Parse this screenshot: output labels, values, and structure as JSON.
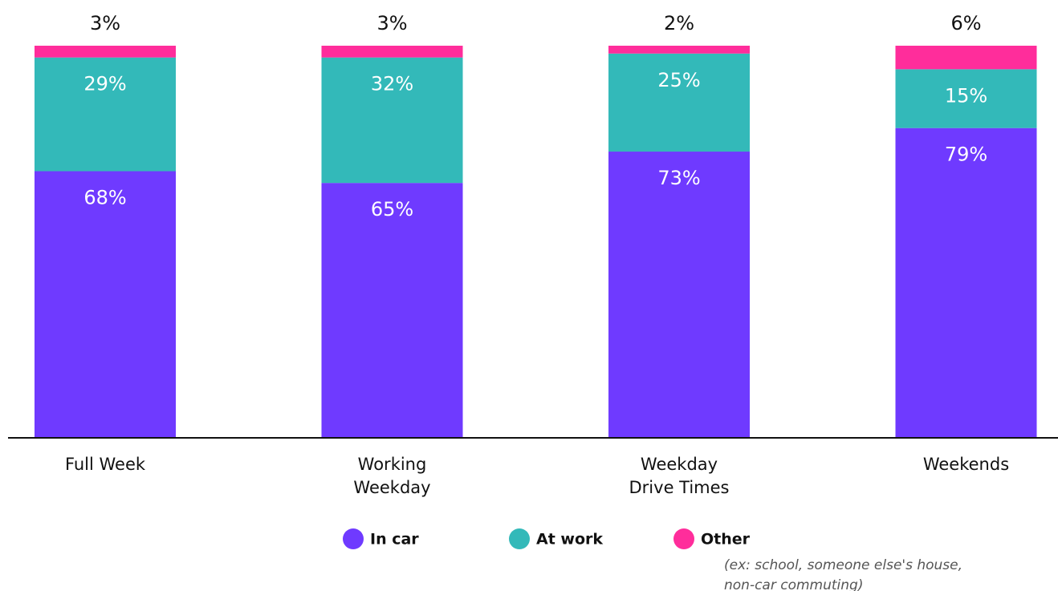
{
  "chart_data": {
    "type": "stacked_bar",
    "categories": [
      "Full Week",
      "Working\nWeekday",
      "Weekday\nDrive Times",
      "Weekends"
    ],
    "series": [
      {
        "name": "In car",
        "color": "#6f3aff",
        "values": [
          68,
          65,
          73,
          79
        ],
        "value_labels": [
          "68%",
          "65%",
          "73%",
          "79%"
        ]
      },
      {
        "name": "At work",
        "color": "#33b9b9",
        "values": [
          29,
          32,
          25,
          15
        ],
        "value_labels": [
          "29%",
          "32%",
          "25%",
          "15%"
        ]
      },
      {
        "name": "Other",
        "color": "#ff2d9b",
        "values": [
          3,
          3,
          2,
          6
        ],
        "value_labels": [
          "3%",
          "3%",
          "2%",
          "6%"
        ]
      }
    ],
    "legend_note": "(ex: school, someone else's house,\nnon-car commuting)",
    "ylim": [
      0,
      100
    ]
  }
}
